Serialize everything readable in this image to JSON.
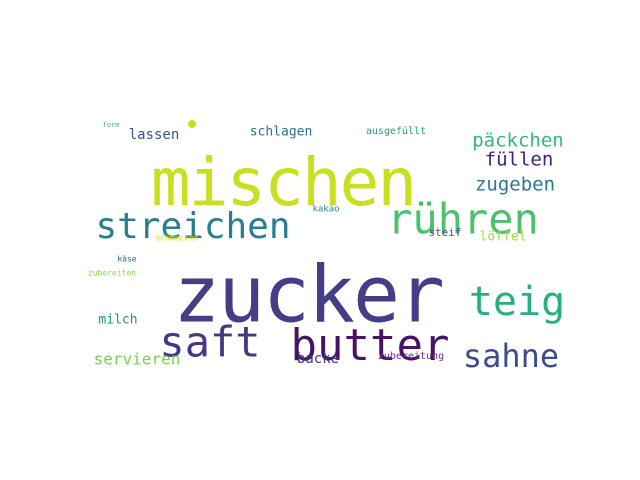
{
  "words": [
    {
      "id": "zucker",
      "text": "zucker",
      "color": "#433e85"
    },
    {
      "id": "mischen",
      "text": "mischen",
      "color": "#c8e020"
    },
    {
      "id": "streichen",
      "text": "streichen",
      "color": "#287d8e"
    },
    {
      "id": "ruehren",
      "text": "rühren",
      "color": "#4ac16d"
    },
    {
      "id": "butter",
      "text": "butter",
      "color": "#471365"
    },
    {
      "id": "saft",
      "text": "saft",
      "color": "#453781"
    },
    {
      "id": "teig",
      "text": "teig",
      "color": "#29af7f"
    },
    {
      "id": "sahne",
      "text": "sahne",
      "color": "#3e4c8a"
    },
    {
      "id": "paeckchen",
      "text": "päckchen",
      "color": "#35b779"
    },
    {
      "id": "fuellen",
      "text": "füllen",
      "color": "#481f70"
    },
    {
      "id": "zugeben",
      "text": "zugeben",
      "color": "#2a788e"
    },
    {
      "id": "lassen",
      "text": "lassen",
      "color": "#3b528b"
    },
    {
      "id": "schlagen",
      "text": "schlagen",
      "color": "#2c728e"
    },
    {
      "id": "servieren",
      "text": "servieren",
      "color": "#7ad151"
    },
    {
      "id": "milch",
      "text": "milch",
      "color": "#21918c"
    },
    {
      "id": "backe",
      "text": "backe",
      "color": "#46327e"
    },
    {
      "id": "loeffel",
      "text": "löffel",
      "color": "#a0da39"
    },
    {
      "id": "steif",
      "text": "steif",
      "color": "#3b528b"
    },
    {
      "id": "ausgefuellt",
      "text": "ausgefüllt",
      "color": "#1f9e89"
    },
    {
      "id": "kakao",
      "text": "kakao",
      "color": "#26828e"
    },
    {
      "id": "zubereitung",
      "text": "zubereitung",
      "color": "#6d2c88"
    },
    {
      "id": "schmecken",
      "text": "schmecken",
      "color": "#d2e21b"
    },
    {
      "id": "kaese",
      "text": "käse",
      "color": "#31688e"
    },
    {
      "id": "zubereiten",
      "text": "zubereiten",
      "color": "#8fd744"
    },
    {
      "id": "form",
      "text": "form",
      "color": "#3dbc74"
    }
  ],
  "decor": {
    "dot_color": "#c8e020"
  }
}
